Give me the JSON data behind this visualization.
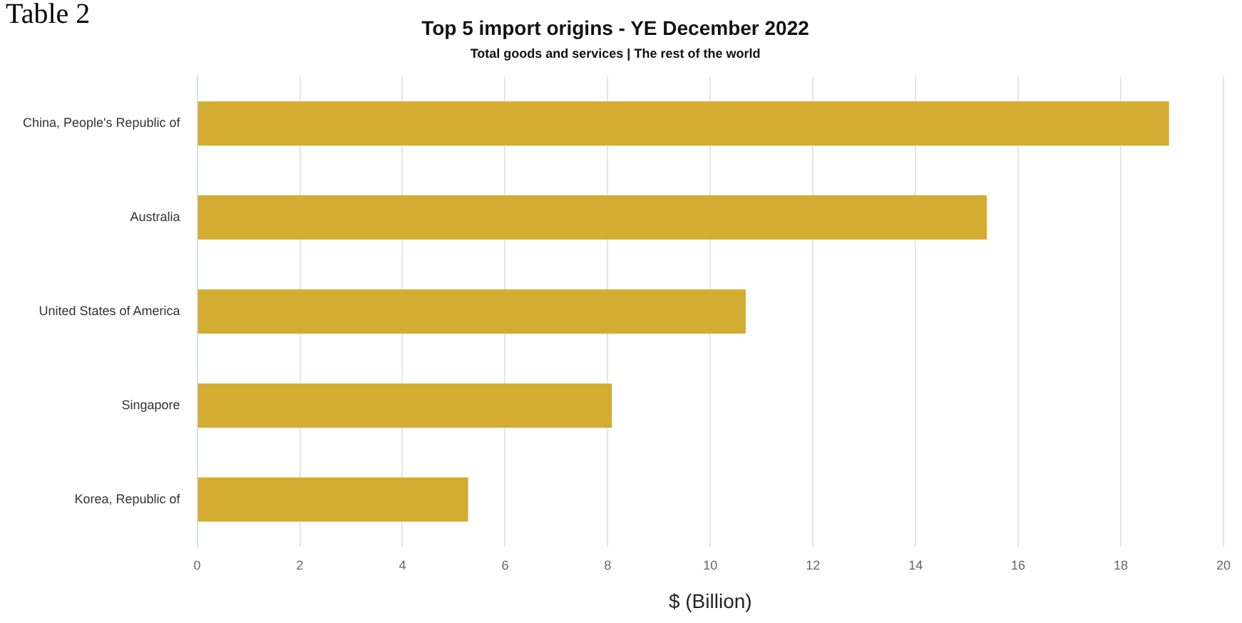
{
  "chart_data": {
    "type": "bar",
    "orientation": "horizontal",
    "title": "Top 5 import origins - YE December 2022",
    "subtitle": "Total goods and services | The rest of the world",
    "xlabel": "$ (Billion)",
    "annotations": [
      "Table 2"
    ],
    "categories": [
      "China, People's Republic of",
      "Australia",
      "United States of America",
      "Singapore",
      "Korea, Republic of"
    ],
    "values": [
      18.94,
      15.39,
      10.69,
      8.08,
      5.28
    ],
    "color": "#d3ac31",
    "xlim": [
      0,
      20
    ],
    "xticks": [
      0,
      2,
      4,
      6,
      8,
      10,
      12,
      14,
      16,
      18,
      20
    ],
    "grid": "x"
  }
}
